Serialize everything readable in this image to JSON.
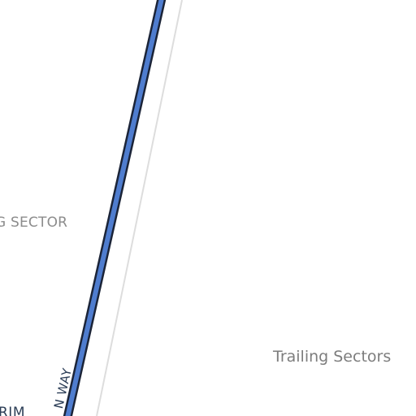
{
  "map": {
    "labels": {
      "sector": "G SECTOR",
      "area": "Trailing Sectors",
      "road": "N WAY",
      "rim": "RIM"
    },
    "colors": {
      "background": "#ffffff",
      "road_fill": "#4f7dcf",
      "road_casing": "#1b2438",
      "secondary_line": "#dddddd",
      "sector_label": "#8c8c8c",
      "area_label": "#7d7d7d",
      "road_label": "#2c3e57"
    }
  }
}
